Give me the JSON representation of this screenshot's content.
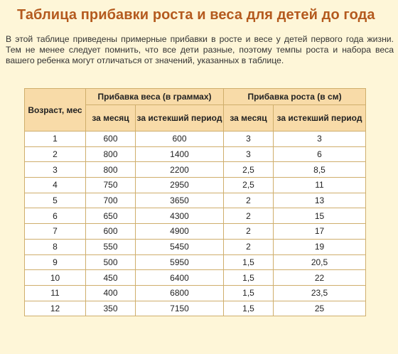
{
  "title": "Таблица прибавки роста и веса для детей до года",
  "intro": "В этой таблице приведены примерные прибавки в росте и весе у детей первого года жизни. Тем не менее следует помнить, что все дети разные, поэтому темпы роста и набора веса вашего ребенка могут отличаться от значений, указанных в таблице.",
  "table": {
    "age_header": "Возраст, мес",
    "weight_header": "Прибавка веса (в граммах)",
    "height_header": "Прибавка роста (в см)",
    "per_month": "за месяц",
    "total_period": "за истекший период",
    "rows": [
      [
        "1",
        "600",
        "600",
        "3",
        "3"
      ],
      [
        "2",
        "800",
        "1400",
        "3",
        "6"
      ],
      [
        "3",
        "800",
        "2200",
        "2,5",
        "8,5"
      ],
      [
        "4",
        "750",
        "2950",
        "2,5",
        "11"
      ],
      [
        "5",
        "700",
        "3650",
        "2",
        "13"
      ],
      [
        "6",
        "650",
        "4300",
        "2",
        "15"
      ],
      [
        "7",
        "600",
        "4900",
        "2",
        "17"
      ],
      [
        "8",
        "550",
        "5450",
        "2",
        "19"
      ],
      [
        "9",
        "500",
        "5950",
        "1,5",
        "20,5"
      ],
      [
        "10",
        "450",
        "6400",
        "1,5",
        "22"
      ],
      [
        "11",
        "400",
        "6800",
        "1,5",
        "23,5"
      ],
      [
        "12",
        "350",
        "7150",
        "1,5",
        "25"
      ]
    ]
  }
}
